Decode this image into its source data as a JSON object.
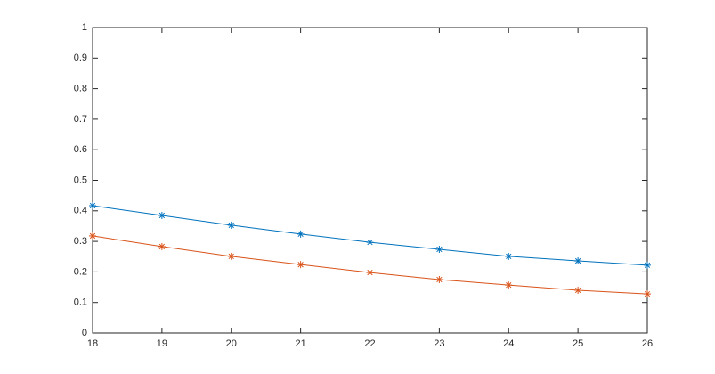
{
  "chart_data": {
    "type": "line",
    "x": [
      18,
      19,
      20,
      21,
      22,
      23,
      24,
      25,
      26
    ],
    "series": [
      {
        "color": "#0072bd",
        "values": [
          0.417,
          0.385,
          0.353,
          0.324,
          0.297,
          0.274,
          0.251,
          0.236,
          0.222
        ]
      },
      {
        "color": "#d95319",
        "values": [
          0.318,
          0.283,
          0.251,
          0.224,
          0.198,
          0.175,
          0.157,
          0.14,
          0.128
        ]
      }
    ],
    "marker": "asterisk",
    "xlim": [
      18,
      26
    ],
    "xticks": [
      18,
      19,
      20,
      21,
      22,
      23,
      24,
      25,
      26
    ],
    "ylim": [
      0,
      1
    ],
    "yticks": [
      0,
      0.1,
      0.2,
      0.3,
      0.4,
      0.5,
      0.6,
      0.7,
      0.8,
      0.9,
      1
    ],
    "grid": false
  }
}
